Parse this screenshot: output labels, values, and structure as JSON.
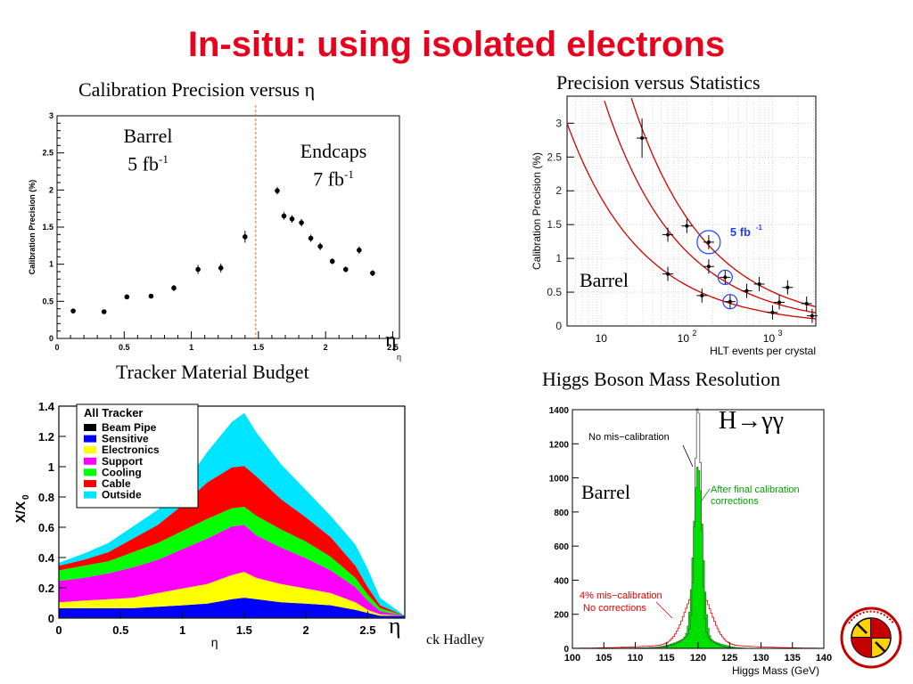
{
  "slide": {
    "title": "In-situ:  using isolated electrons",
    "footer_author": "ck Hadley"
  },
  "panels": {
    "calib_eta": {
      "caption": "Calibration Precision versus η",
      "ylabel": "Calibration Precision (%)",
      "xlabel": "η",
      "eta_symbol": "η",
      "barrel_label": "Barrel",
      "barrel_lumi": "5 fb",
      "barrel_lumi_sup": "-1",
      "endcap_label": "Endcaps",
      "endcap_lumi": "7 fb",
      "endcap_lumi_sup": "-1",
      "y_ticks": [
        "0",
        "0.5",
        "1",
        "1.5",
        "2",
        "2.5",
        "3"
      ],
      "x_ticks": [
        "0",
        "0.5",
        "1",
        "1.5",
        "2",
        "2.5"
      ]
    },
    "precision_stats": {
      "caption": "Precision versus Statistics",
      "ylabel": "Calibration Precision (%)",
      "xlabel": "HLT events per crystal",
      "lumi_label": "5 fb",
      "lumi_sup": "-1",
      "barrel_label": "Barrel",
      "y_ticks": [
        "0",
        "0.5",
        "1",
        "1.5",
        "2",
        "2.5",
        "3"
      ],
      "x_tick_10": "10",
      "x_tick_100_base": "10",
      "x_tick_100_exp": "2",
      "x_tick_1000_base": "10",
      "x_tick_1000_exp": "3"
    },
    "tracker": {
      "caption": "Tracker Material Budget",
      "ylabel": "X/X",
      "ylabel_sub": "0",
      "xlabel": "η",
      "eta_big": "η",
      "legend_title": "All Tracker",
      "legend": [
        {
          "name": "Beam Pipe",
          "color": "#000000"
        },
        {
          "name": "Sensitive",
          "color": "#0000ff"
        },
        {
          "name": "Electronics",
          "color": "#ffff00"
        },
        {
          "name": "Support",
          "color": "#ff00ff"
        },
        {
          "name": "Cooling",
          "color": "#00ff00"
        },
        {
          "name": "Cable",
          "color": "#ff0000"
        },
        {
          "name": "Outside",
          "color": "#00e5ff"
        }
      ],
      "y_ticks": [
        "0",
        "0.2",
        "0.4",
        "0.6",
        "0.8",
        "1",
        "1.2",
        "1.4"
      ],
      "x_ticks": [
        "0",
        "0.5",
        "1",
        "1.5",
        "2",
        "2.5"
      ]
    },
    "higgs": {
      "caption": "Higgs Boson Mass Resolution",
      "xlabel": "Higgs Mass (GeV)",
      "process_label": "H→γγ",
      "barrel_label": "Barrel",
      "no_miscal": "No mis−calibration",
      "after_line1": "After final calibration",
      "after_line2": "corrections",
      "miscal_line1": "4% mis−calibration",
      "miscal_line2": "No corrections",
      "y_ticks": [
        "0",
        "200",
        "400",
        "600",
        "800",
        "1000",
        "1200",
        "1400"
      ],
      "x_ticks": [
        "100",
        "105",
        "110",
        "115",
        "120",
        "125",
        "130",
        "135",
        "140"
      ]
    }
  },
  "chart_data": [
    {
      "type": "scatter",
      "title": "Calibration Precision versus η",
      "xlabel": "η",
      "ylabel": "Calibration Precision (%)",
      "xlim": [
        0,
        2.55
      ],
      "ylim": [
        0,
        3
      ],
      "grid": false,
      "points": [
        {
          "x": 0.12,
          "y": 0.37,
          "err": 0.02
        },
        {
          "x": 0.35,
          "y": 0.36,
          "err": 0.02
        },
        {
          "x": 0.52,
          "y": 0.56,
          "err": 0.03
        },
        {
          "x": 0.7,
          "y": 0.57,
          "err": 0.03
        },
        {
          "x": 0.87,
          "y": 0.68,
          "err": 0.04
        },
        {
          "x": 1.05,
          "y": 0.93,
          "err": 0.06
        },
        {
          "x": 1.22,
          "y": 0.95,
          "err": 0.06
        },
        {
          "x": 1.4,
          "y": 1.37,
          "err": 0.08
        },
        {
          "x": 1.64,
          "y": 1.99,
          "err": 0.05
        },
        {
          "x": 1.69,
          "y": 1.65,
          "err": 0.05
        },
        {
          "x": 1.75,
          "y": 1.61,
          "err": 0.05
        },
        {
          "x": 1.82,
          "y": 1.56,
          "err": 0.05
        },
        {
          "x": 1.89,
          "y": 1.35,
          "err": 0.05
        },
        {
          "x": 1.96,
          "y": 1.24,
          "err": 0.05
        },
        {
          "x": 2.05,
          "y": 1.04,
          "err": 0.04
        },
        {
          "x": 2.15,
          "y": 0.93,
          "err": 0.04
        },
        {
          "x": 2.25,
          "y": 1.19,
          "err": 0.05
        },
        {
          "x": 2.35,
          "y": 0.88,
          "err": 0.04
        }
      ],
      "boundary_eta": 1.48
    },
    {
      "type": "line",
      "title": "Precision versus Statistics",
      "xlabel": "HLT events per crystal",
      "ylabel": "Calibration Precision (%)",
      "x_scale": "log",
      "xlim": [
        4,
        3200
      ],
      "ylim": [
        0,
        3.4
      ],
      "grid": true,
      "series": [
        {
          "curve_k": 16.0,
          "points": [
            {
              "x": 30,
              "y": 2.78
            },
            {
              "x": 100,
              "y": 1.48
            },
            {
              "x": 180,
              "y": 1.24
            },
            {
              "x": 280,
              "y": 0.72
            },
            {
              "x": 700,
              "y": 0.62
            },
            {
              "x": 1500,
              "y": 0.57
            }
          ]
        },
        {
          "curve_k": 11.0,
          "points": [
            {
              "x": 60,
              "y": 1.35
            },
            {
              "x": 180,
              "y": 0.88
            },
            {
              "x": 500,
              "y": 0.52
            },
            {
              "x": 1200,
              "y": 0.35
            },
            {
              "x": 2500,
              "y": 0.33
            }
          ]
        },
        {
          "curve_k": 6.0,
          "points": [
            {
              "x": 60,
              "y": 0.77
            },
            {
              "x": 150,
              "y": 0.45
            },
            {
              "x": 320,
              "y": 0.36
            },
            {
              "x": 1000,
              "y": 0.2
            },
            {
              "x": 2900,
              "y": 0.15
            }
          ]
        }
      ],
      "highlighted": [
        {
          "x": 180,
          "y": 1.24
        },
        {
          "x": 280,
          "y": 0.72
        },
        {
          "x": 320,
          "y": 0.36
        }
      ]
    },
    {
      "type": "area",
      "title": "Tracker Material Budget",
      "xlabel": "η",
      "ylabel": "X/X0",
      "xlim": [
        0,
        2.8
      ],
      "ylim": [
        0,
        1.4
      ],
      "x": [
        0.0,
        0.2,
        0.4,
        0.6,
        0.8,
        1.0,
        1.2,
        1.4,
        1.5,
        1.6,
        1.8,
        2.0,
        2.2,
        2.4,
        2.5,
        2.6,
        2.8
      ],
      "series": [
        {
          "name": "Beam Pipe",
          "values": [
            0.005,
            0.005,
            0.005,
            0.005,
            0.005,
            0.005,
            0.005,
            0.005,
            0.005,
            0.005,
            0.005,
            0.005,
            0.005,
            0.005,
            0.005,
            0.005,
            0.005
          ]
        },
        {
          "name": "Sensitive",
          "values": [
            0.06,
            0.06,
            0.06,
            0.06,
            0.07,
            0.08,
            0.09,
            0.12,
            0.13,
            0.12,
            0.1,
            0.09,
            0.08,
            0.05,
            0.03,
            0.01,
            0.01
          ]
        },
        {
          "name": "Electronics",
          "values": [
            0.04,
            0.05,
            0.06,
            0.07,
            0.09,
            0.11,
            0.13,
            0.16,
            0.17,
            0.14,
            0.12,
            0.1,
            0.08,
            0.05,
            0.02,
            0.01,
            0.0
          ]
        },
        {
          "name": "Support",
          "values": [
            0.14,
            0.15,
            0.17,
            0.2,
            0.22,
            0.26,
            0.3,
            0.32,
            0.31,
            0.28,
            0.24,
            0.2,
            0.15,
            0.1,
            0.06,
            0.02,
            0.0
          ]
        },
        {
          "name": "Cooling",
          "values": [
            0.07,
            0.08,
            0.08,
            0.1,
            0.11,
            0.12,
            0.13,
            0.12,
            0.12,
            0.13,
            0.12,
            0.11,
            0.09,
            0.06,
            0.04,
            0.02,
            0.0
          ]
        },
        {
          "name": "Cable",
          "values": [
            0.03,
            0.04,
            0.06,
            0.09,
            0.12,
            0.17,
            0.24,
            0.27,
            0.27,
            0.26,
            0.2,
            0.16,
            0.13,
            0.08,
            0.05,
            0.02,
            0.0
          ]
        },
        {
          "name": "Outside",
          "values": [
            0.02,
            0.04,
            0.06,
            0.08,
            0.1,
            0.12,
            0.2,
            0.3,
            0.35,
            0.29,
            0.23,
            0.18,
            0.14,
            0.14,
            0.12,
            0.05,
            0.0
          ]
        }
      ]
    },
    {
      "type": "line",
      "title": "Higgs Boson Mass Resolution",
      "xlabel": "Higgs Mass (GeV)",
      "xlim": [
        100,
        140
      ],
      "ylim": [
        0,
        1400
      ],
      "series": [
        {
          "name": "No mis−calibration",
          "peak_x": 120.0,
          "peak_y": 1340,
          "sigma": 0.5
        },
        {
          "name": "After final calibration corrections",
          "peak_x": 120.0,
          "peak_y": 1000,
          "sigma": 0.7
        },
        {
          "name": "4% mis−calibration No corrections",
          "peak_x": 120.0,
          "peak_y": 330,
          "sigma": 2.0
        }
      ]
    }
  ]
}
